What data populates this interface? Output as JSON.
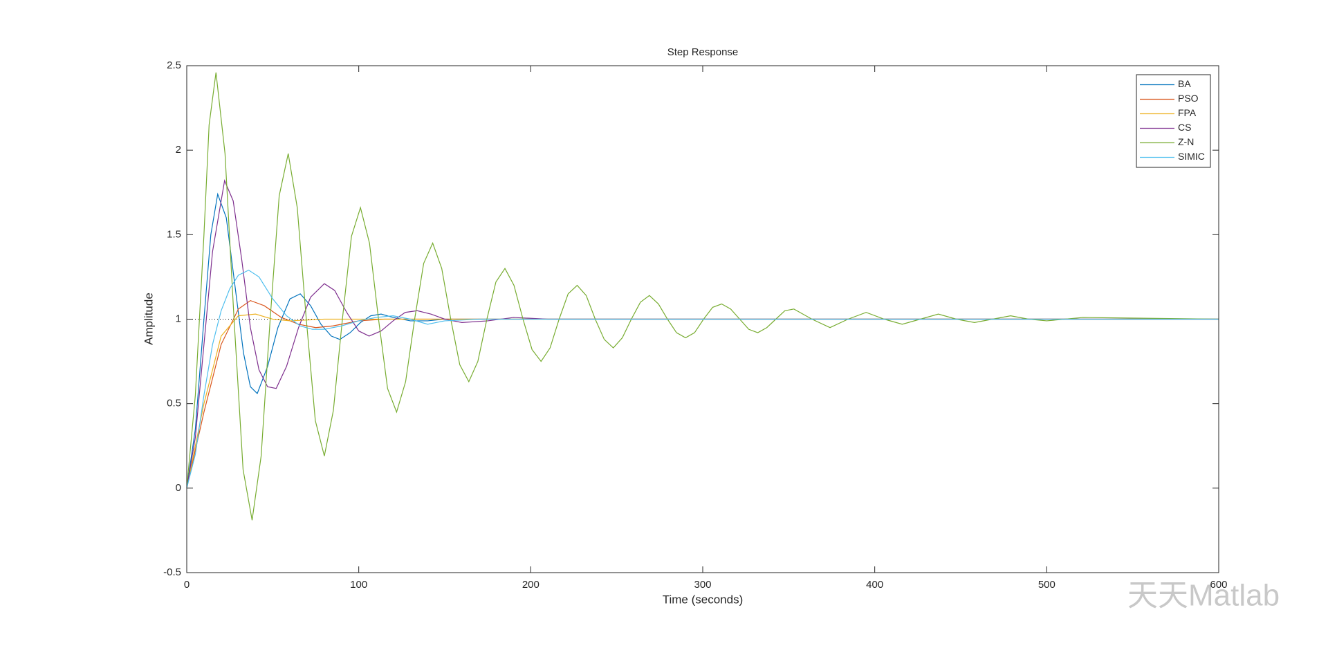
{
  "chart_data": {
    "type": "line",
    "title": "Step Response",
    "x_label": "Time (seconds)",
    "y_label": "Amplitude",
    "xlim": [
      0,
      600
    ],
    "xticks": [
      0,
      100,
      200,
      300,
      400,
      500,
      600
    ],
    "ylim": [
      -0.5,
      2.5
    ],
    "yticks": [
      -0.5,
      0,
      0.5,
      1,
      1.5,
      2,
      2.5
    ],
    "grid": false,
    "legend": "upper right",
    "hline": 1,
    "watermark": "天天Matlab",
    "series": [
      {
        "name": "BA",
        "color": "#0072BD",
        "x": [
          0,
          5,
          10,
          14,
          18,
          23,
          28,
          33,
          37,
          41,
          47,
          53,
          60,
          66,
          72,
          78,
          84,
          89,
          95,
          101,
          107,
          113,
          120,
          130,
          140,
          150,
          600
        ],
        "values": [
          0,
          0.35,
          1.0,
          1.5,
          1.74,
          1.6,
          1.2,
          0.8,
          0.6,
          0.56,
          0.72,
          0.95,
          1.12,
          1.15,
          1.08,
          0.97,
          0.9,
          0.88,
          0.92,
          0.98,
          1.02,
          1.03,
          1.01,
          0.99,
          0.99,
          1.0,
          1.0
        ]
      },
      {
        "name": "PSO",
        "color": "#D95319",
        "x": [
          0,
          10,
          20,
          30,
          37,
          45,
          55,
          65,
          75,
          85,
          100,
          115,
          130,
          600
        ],
        "values": [
          0,
          0.45,
          0.85,
          1.06,
          1.11,
          1.08,
          1.01,
          0.97,
          0.95,
          0.96,
          0.99,
          1.0,
          1.0,
          1.0
        ]
      },
      {
        "name": "FPA",
        "color": "#EDB120",
        "x": [
          0,
          10,
          20,
          30,
          40,
          50,
          60,
          80,
          600
        ],
        "values": [
          0,
          0.5,
          0.9,
          1.02,
          1.03,
          1.0,
          0.99,
          1.0,
          1.0
        ]
      },
      {
        "name": "CS",
        "color": "#7E2F8E",
        "x": [
          0,
          5,
          10,
          15,
          22,
          27,
          32,
          37,
          42,
          47,
          52,
          58,
          65,
          72,
          80,
          86,
          93,
          100,
          106,
          113,
          120,
          127,
          134,
          142,
          150,
          160,
          175,
          190,
          210,
          600
        ],
        "values": [
          0,
          0.3,
          0.85,
          1.4,
          1.82,
          1.7,
          1.35,
          0.95,
          0.7,
          0.6,
          0.59,
          0.72,
          0.95,
          1.13,
          1.21,
          1.17,
          1.04,
          0.93,
          0.9,
          0.93,
          0.99,
          1.04,
          1.05,
          1.03,
          1.0,
          0.98,
          0.99,
          1.01,
          1.0,
          1.0
        ]
      },
      {
        "name": "Z-N",
        "color": "#77AC30",
        "x": [
          0,
          5,
          10,
          13,
          17,
          22.25,
          27.5,
          32.75,
          38,
          43.25,
          48.5,
          53.75,
          59,
          64.25,
          69.5,
          74.75,
          80,
          85.25,
          90.5,
          95.75,
          101,
          106.25,
          111.5,
          116.75,
          122,
          127.25,
          132.5,
          137.75,
          143,
          148.25,
          153.5,
          158.75,
          164,
          169.25,
          174.5,
          179.75,
          185,
          190.25,
          195.5,
          200.75,
          206,
          211.25,
          216.5,
          221.75,
          227,
          232.25,
          237.5,
          242.75,
          248,
          253.25,
          258.5,
          263.75,
          269,
          274.25,
          279.5,
          284.75,
          290,
          295.25,
          300.5,
          305.75,
          311,
          316.25,
          321.5,
          326.75,
          332,
          337.25,
          342.5,
          347.75,
          353,
          363.5,
          374,
          384.5,
          395,
          405.5,
          416,
          426.5,
          437,
          447.5,
          458,
          468.5,
          479,
          489.5,
          500,
          510.5,
          521,
          600
        ],
        "values": [
          0,
          0.55,
          1.5,
          2.15,
          2.46,
          1.98,
          1.0,
          0.11,
          -0.19,
          0.19,
          1.0,
          1.73,
          1.98,
          1.66,
          1.0,
          0.4,
          0.19,
          0.46,
          1.0,
          1.49,
          1.66,
          1.45,
          1.0,
          0.59,
          0.45,
          0.63,
          1.0,
          1.33,
          1.45,
          1.3,
          1.0,
          0.73,
          0.63,
          0.75,
          1.0,
          1.22,
          1.3,
          1.2,
          1.0,
          0.82,
          0.75,
          0.83,
          1.0,
          1.15,
          1.2,
          1.14,
          1.0,
          0.88,
          0.83,
          0.89,
          1.0,
          1.1,
          1.14,
          1.09,
          1.0,
          0.92,
          0.89,
          0.92,
          1.0,
          1.07,
          1.09,
          1.06,
          1.0,
          0.94,
          0.92,
          0.95,
          1.0,
          1.05,
          1.06,
          1.0,
          0.95,
          1.0,
          1.04,
          1.0,
          0.97,
          1.0,
          1.03,
          1.0,
          0.98,
          1.0,
          1.02,
          1.0,
          0.99,
          1.0,
          1.01,
          1.0
        ]
      },
      {
        "name": "SIMIC",
        "color": "#4DBEEE",
        "x": [
          0,
          5,
          10,
          15,
          20,
          25,
          30,
          36,
          42,
          50,
          58,
          66,
          73,
          80,
          90,
          100,
          110,
          120,
          130,
          140,
          150,
          170,
          600
        ],
        "values": [
          0,
          0.2,
          0.55,
          0.85,
          1.05,
          1.18,
          1.26,
          1.29,
          1.25,
          1.12,
          1.02,
          0.96,
          0.94,
          0.94,
          0.96,
          0.99,
          1.01,
          1.02,
          1.0,
          0.97,
          0.99,
          1.0,
          1.0
        ]
      }
    ]
  }
}
